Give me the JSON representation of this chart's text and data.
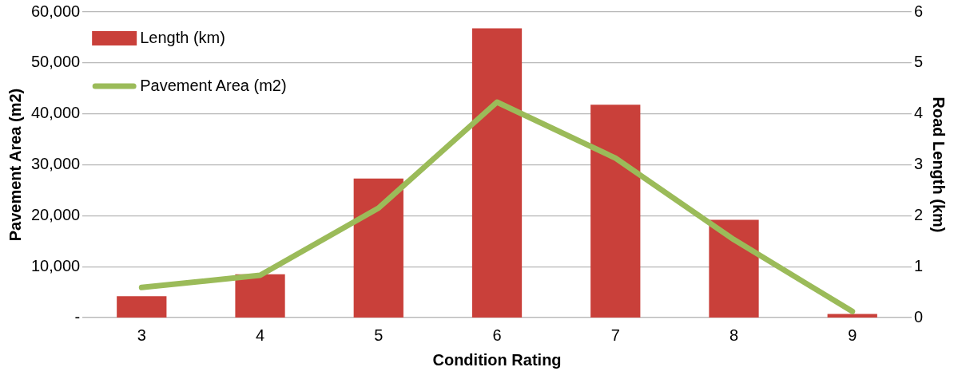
{
  "chart_data": {
    "type": "bar",
    "xlabel": "Condition Rating",
    "ylabel": "Pavement Area (m2)",
    "y2label": "Road Length (km)",
    "categories": [
      "3",
      "4",
      "5",
      "6",
      "7",
      "8",
      "9"
    ],
    "series": [
      {
        "name": "Length (km)",
        "axis": "y2",
        "color": "#c9403a",
        "values": [
          0.42,
          0.85,
          2.73,
          5.68,
          4.18,
          1.92,
          0.07
        ]
      },
      {
        "name": "Pavement Area (m2)",
        "type": "line",
        "axis": "y",
        "color": "#9bbb59",
        "values": [
          5900,
          8300,
          21500,
          42300,
          31300,
          15300,
          1200
        ]
      }
    ],
    "ylim": [
      0,
      60000
    ],
    "yticks": [
      {
        "value": 0,
        "label": "-"
      },
      {
        "value": 10000,
        "label": "10,000"
      },
      {
        "value": 20000,
        "label": "20,000"
      },
      {
        "value": 30000,
        "label": "30,000"
      },
      {
        "value": 40000,
        "label": "40,000"
      },
      {
        "value": 50000,
        "label": "50,000"
      },
      {
        "value": 60000,
        "label": "60,000"
      }
    ],
    "y2lim": [
      0,
      6
    ],
    "y2ticks": [
      0,
      1,
      2,
      3,
      4,
      5,
      6
    ],
    "grid": "y",
    "legend": "top left",
    "marker": "none",
    "line_style": "solid"
  }
}
